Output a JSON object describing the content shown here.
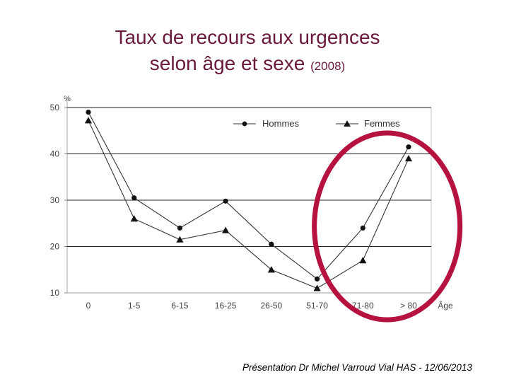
{
  "title": {
    "line1": "Taux de recours aux urgences",
    "line2": "selon âge et sexe",
    "year": "(2008)"
  },
  "footer": "Présentation Dr Michel Varroud Vial HAS - 12/06/2013",
  "chart_data": {
    "type": "line",
    "categories": [
      "0",
      "1-5",
      "6-15",
      "16-25",
      "26-50",
      "51-70",
      "71-80",
      "> 80"
    ],
    "series": [
      {
        "name": "Hommes",
        "marker": "circle",
        "values": [
          49,
          30.5,
          24,
          29.8,
          20.5,
          13,
          24,
          41.5
        ]
      },
      {
        "name": "Femmes",
        "marker": "triangle",
        "values": [
          47.2,
          26,
          21.5,
          23.5,
          15,
          11,
          17,
          39
        ]
      }
    ],
    "ylabel": "%",
    "xlabel": "Âge",
    "ylim": [
      10,
      50
    ],
    "yticks": [
      10,
      20,
      30,
      40,
      50
    ],
    "grid": true,
    "legend": "top-right",
    "highlight": {
      "shape": "ellipse",
      "color": "#b5123f",
      "categories": [
        "71-80",
        "> 80"
      ]
    },
    "colors": {
      "line": "#333333",
      "grid": "#222222",
      "axis_text": "#444444"
    }
  }
}
